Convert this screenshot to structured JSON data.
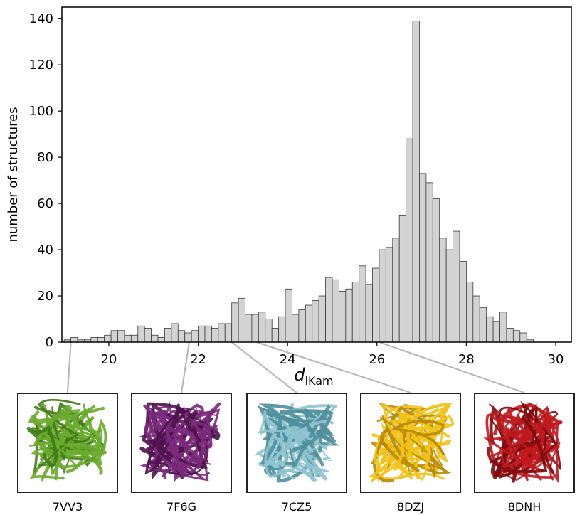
{
  "chart_data": {
    "type": "bar",
    "xlabel_main": "d",
    "xlabel_sub": "iKam",
    "ylabel": "number of structures",
    "xlim": [
      18.95,
      30.35
    ],
    "ylim": [
      0,
      145
    ],
    "xticks": [
      20,
      22,
      24,
      26,
      28,
      30
    ],
    "yticks": [
      0,
      20,
      40,
      60,
      80,
      100,
      120,
      140
    ],
    "bin_start": 19.0,
    "bin_width": 0.15,
    "values": [
      1,
      2,
      1,
      1,
      2,
      2,
      3,
      5,
      5,
      3,
      3,
      7,
      6,
      3,
      2,
      6,
      8,
      5,
      4,
      5,
      7,
      7,
      6,
      8,
      8,
      17,
      19,
      12,
      12,
      13,
      10,
      6,
      11,
      23,
      12,
      14,
      16,
      18,
      20,
      28,
      27,
      22,
      23,
      26,
      33,
      25,
      32,
      40,
      41,
      45,
      55,
      88,
      139,
      73,
      69,
      62,
      45,
      40,
      48,
      35,
      26,
      20,
      15,
      11,
      9,
      13,
      6,
      5,
      4,
      1
    ],
    "bar_color": "#d3d3d3",
    "edge_color": "#3a3a3a"
  },
  "structures": [
    {
      "id": "7VV3",
      "color": "#6aaa2e",
      "dark": "#3f7a17",
      "x": 19.15
    },
    {
      "id": "7F6G",
      "color": "#7b2a7b",
      "dark": "#4d134d",
      "x": 21.8
    },
    {
      "id": "7CZ5",
      "color": "#8ec4cf",
      "dark": "#4f8e9c",
      "x": 22.75
    },
    {
      "id": "8DZJ",
      "color": "#f2c21a",
      "dark": "#b88a05",
      "x": 23.3
    },
    {
      "id": "8DNH",
      "color": "#c0191e",
      "dark": "#7e0b10",
      "x": 26.05
    }
  ]
}
